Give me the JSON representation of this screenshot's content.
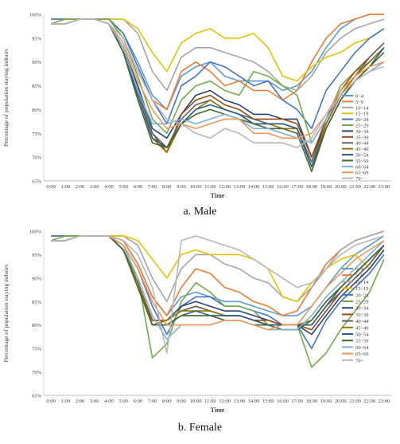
{
  "chart_data": [
    {
      "type": "line",
      "caption": "a. Male",
      "xlabel": "Time",
      "ylabel": "Percentage of population staying indoors",
      "ylim": [
        65,
        100
      ],
      "yticks": [
        "65%",
        "70%",
        "75%",
        "80%",
        "85%",
        "90%",
        "95%",
        "100%"
      ],
      "x": [
        "0:00",
        "1:00",
        "2:00",
        "3:00",
        "4:00",
        "5:00",
        "6:00",
        "7:00",
        "8:00",
        "9:00",
        "10:00",
        "11:00",
        "12:00",
        "13:00",
        "14:00",
        "15:00",
        "16:00",
        "17:00",
        "18:00",
        "19:00",
        "20:00",
        "21:00",
        "22:00",
        "23:00"
      ],
      "legend_position": "right",
      "grid": false,
      "series": [
        {
          "name": "0~4",
          "color": "#5b9bd5",
          "values": [
            99,
            99,
            99,
            99,
            99,
            96,
            90,
            83,
            80,
            87,
            89,
            90,
            87,
            86,
            86,
            86,
            84,
            85,
            88,
            93,
            97,
            99,
            100,
            100
          ]
        },
        {
          "name": "5~9",
          "color": "#ed7d31",
          "values": [
            99,
            99,
            99,
            99,
            99,
            95,
            88,
            82,
            80,
            88,
            90,
            88,
            85,
            86,
            84,
            84,
            82,
            84,
            90,
            95,
            98,
            99,
            100,
            100
          ]
        },
        {
          "name": "10~14",
          "color": "#a5a5a5",
          "values": [
            99,
            99,
            99,
            99,
            99,
            99,
            96,
            88,
            84,
            91,
            93,
            93,
            92,
            91,
            90,
            88,
            85,
            84,
            87,
            92,
            95,
            97,
            98,
            99
          ]
        },
        {
          "name": "15~19",
          "color": "#e6c300",
          "values": [
            99,
            99,
            99,
            99,
            99,
            99,
            97,
            92,
            88,
            94,
            96,
            97,
            95,
            95,
            96,
            93,
            87,
            86,
            89,
            91,
            92,
            94,
            95,
            97
          ]
        },
        {
          "name": "20~24",
          "color": "#4472c4",
          "values": [
            99,
            99,
            99,
            99,
            99,
            96,
            89,
            82,
            77,
            85,
            87,
            90,
            89,
            87,
            85,
            86,
            82,
            80,
            76,
            84,
            88,
            92,
            95,
            97
          ]
        },
        {
          "name": "25~29",
          "color": "#70ad47",
          "values": [
            98,
            99,
            99,
            99,
            99,
            95,
            87,
            78,
            75,
            82,
            85,
            86,
            84,
            83,
            88,
            87,
            85,
            83,
            73,
            78,
            85,
            88,
            90,
            93
          ]
        },
        {
          "name": "30~34",
          "color": "#264478",
          "values": [
            98,
            98,
            99,
            99,
            98,
            93,
            85,
            76,
            74,
            79,
            83,
            84,
            82,
            81,
            79,
            79,
            78,
            78,
            70,
            77,
            83,
            87,
            90,
            93
          ]
        },
        {
          "name": "35~39",
          "color": "#9e480e",
          "values": [
            98,
            98,
            99,
            99,
            98,
            93,
            84,
            75,
            71,
            79,
            82,
            83,
            81,
            80,
            78,
            78,
            78,
            77,
            70,
            78,
            84,
            88,
            91,
            94
          ]
        },
        {
          "name": "40~44",
          "color": "#636363",
          "values": [
            98,
            98,
            99,
            99,
            98,
            93,
            84,
            75,
            72,
            78,
            81,
            82,
            80,
            79,
            78,
            77,
            77,
            76,
            69,
            77,
            83,
            87,
            91,
            94
          ]
        },
        {
          "name": "45~49",
          "color": "#997300",
          "values": [
            98,
            98,
            99,
            99,
            98,
            92,
            83,
            74,
            71,
            77,
            80,
            82,
            80,
            79,
            77,
            77,
            76,
            76,
            68,
            77,
            83,
            87,
            90,
            93
          ]
        },
        {
          "name": "50~54",
          "color": "#255e91",
          "values": [
            98,
            98,
            99,
            99,
            98,
            92,
            83,
            74,
            72,
            77,
            80,
            81,
            80,
            79,
            77,
            77,
            77,
            76,
            68,
            76,
            82,
            86,
            89,
            93
          ]
        },
        {
          "name": "55~59",
          "color": "#43682b",
          "values": [
            98,
            98,
            99,
            99,
            98,
            92,
            82,
            73,
            72,
            77,
            79,
            80,
            79,
            78,
            77,
            76,
            76,
            75,
            67,
            76,
            82,
            86,
            89,
            92
          ]
        },
        {
          "name": "60~64",
          "color": "#7cafdd",
          "values": [
            98,
            98,
            99,
            99,
            98,
            93,
            84,
            77,
            77,
            78,
            77,
            78,
            79,
            78,
            76,
            76,
            75,
            74,
            73,
            78,
            83,
            86,
            88,
            90
          ]
        },
        {
          "name": "65~69",
          "color": "#f1975a",
          "values": [
            98,
            98,
            99,
            99,
            98,
            94,
            86,
            80,
            76,
            77,
            76,
            77,
            78,
            78,
            75,
            75,
            74,
            74,
            75,
            79,
            84,
            87,
            89,
            90
          ]
        },
        {
          "name": "70~",
          "color": "#b7b7b7",
          "values": [
            98,
            98,
            99,
            99,
            98,
            95,
            88,
            82,
            78,
            77,
            75,
            74,
            76,
            75,
            73,
            73,
            73,
            72,
            74,
            79,
            83,
            86,
            88,
            89
          ]
        }
      ]
    },
    {
      "type": "line",
      "caption": "b. Female",
      "xlabel": "Time",
      "ylabel": "Percentage of population staying indoors",
      "ylim": [
        65,
        100
      ],
      "yticks": [
        "65%",
        "70%",
        "75%",
        "80%",
        "85%",
        "90%",
        "95%",
        "100%"
      ],
      "x": [
        "0:00",
        "1:00",
        "2:00",
        "3:00",
        "4:00",
        "5:00",
        "6:00",
        "7:00",
        "8:00",
        "9:00",
        "10:00",
        "11:00",
        "12:00",
        "13:00",
        "14:00",
        "15:00",
        "16:00",
        "17:00",
        "18:00",
        "19:00",
        "20:00",
        "21:00",
        "22:00",
        "23:00"
      ],
      "legend_position": "right",
      "grid": false,
      "series": [
        {
          "name": "0~4",
          "color": "#5b9bd5",
          "values": [
            99,
            99,
            99,
            99,
            99,
            98,
            93,
            86,
            82,
            86,
            87,
            86,
            85,
            85,
            84,
            83,
            82,
            82,
            84,
            88,
            92,
            95,
            97,
            99
          ]
        },
        {
          "name": "5~9",
          "color": "#ed7d31",
          "values": [
            99,
            99,
            99,
            99,
            99,
            98,
            93,
            86,
            82,
            88,
            92,
            91,
            88,
            87,
            85,
            84,
            82,
            83,
            88,
            93,
            96,
            98,
            99,
            100
          ]
        },
        {
          "name": "10~14",
          "color": "#a5a5a5",
          "values": [
            99,
            99,
            99,
            99,
            99,
            99,
            97,
            90,
            85,
            92,
            95,
            95,
            93,
            92,
            90,
            89,
            86,
            85,
            88,
            92,
            96,
            98,
            99,
            100
          ]
        },
        {
          "name": "15~19",
          "color": "#e6c300",
          "values": [
            99,
            99,
            99,
            99,
            99,
            99,
            98,
            94,
            90,
            95,
            96,
            95,
            95,
            95,
            94,
            92,
            86,
            85,
            89,
            92,
            94,
            95,
            92,
            96
          ]
        },
        {
          "name": "20~24",
          "color": "#4472c4",
          "values": [
            99,
            99,
            99,
            99,
            99,
            97,
            92,
            84,
            78,
            84,
            86,
            86,
            84,
            84,
            83,
            82,
            80,
            80,
            75,
            81,
            85,
            88,
            91,
            95
          ]
        },
        {
          "name": "25~29",
          "color": "#70ad47",
          "values": [
            98,
            99,
            99,
            99,
            99,
            96,
            90,
            73,
            76,
            85,
            89,
            87,
            84,
            84,
            83,
            80,
            80,
            80,
            71,
            74,
            79,
            83,
            87,
            94
          ]
        },
        {
          "name": "30~34",
          "color": "#264478",
          "values": [
            98,
            98,
            99,
            99,
            99,
            96,
            89,
            81,
            81,
            84,
            85,
            84,
            83,
            83,
            82,
            81,
            80,
            80,
            78,
            82,
            86,
            89,
            92,
            96
          ]
        },
        {
          "name": "35~39",
          "color": "#9e480e",
          "values": [
            98,
            98,
            99,
            99,
            99,
            96,
            89,
            81,
            81,
            83,
            84,
            83,
            82,
            82,
            81,
            81,
            80,
            80,
            79,
            83,
            87,
            90,
            93,
            97
          ]
        },
        {
          "name": "40~44",
          "color": "#636363",
          "values": [
            98,
            98,
            99,
            99,
            99,
            96,
            89,
            80,
            81,
            83,
            84,
            83,
            82,
            82,
            81,
            80,
            80,
            80,
            80,
            84,
            87,
            90,
            93,
            97
          ]
        },
        {
          "name": "45~49",
          "color": "#997300",
          "values": [
            98,
            98,
            99,
            99,
            99,
            96,
            89,
            80,
            81,
            83,
            83,
            83,
            82,
            82,
            81,
            80,
            80,
            80,
            81,
            85,
            88,
            91,
            94,
            97
          ]
        },
        {
          "name": "50~54",
          "color": "#255e91",
          "values": [
            98,
            98,
            99,
            99,
            99,
            96,
            88,
            80,
            80,
            82,
            83,
            82,
            82,
            82,
            81,
            80,
            80,
            80,
            80,
            84,
            88,
            91,
            94,
            97
          ]
        },
        {
          "name": "55~59",
          "color": "#43682b",
          "values": [
            98,
            98,
            99,
            99,
            99,
            96,
            88,
            80,
            80,
            82,
            82,
            82,
            81,
            81,
            80,
            80,
            79,
            79,
            81,
            85,
            88,
            91,
            94,
            97
          ]
        },
        {
          "name": "60~64",
          "color": "#7cafdd",
          "values": [
            98,
            98,
            99,
            99,
            99,
            97,
            90,
            82,
            77,
            80,
            80,
            80,
            81,
            81,
            80,
            79,
            79,
            79,
            82,
            86,
            89,
            92,
            95,
            98
          ]
        },
        {
          "name": "65~69",
          "color": "#f1975a",
          "values": [
            98,
            98,
            99,
            99,
            99,
            97,
            92,
            85,
            80,
            80,
            80,
            80,
            81,
            81,
            80,
            79,
            80,
            80,
            84,
            88,
            91,
            94,
            96,
            98
          ]
        },
        {
          "name": "70~",
          "color": "#b7b7b7",
          "values": [
            98,
            98,
            99,
            99,
            99,
            98,
            95,
            88,
            74,
            98,
            99,
            98,
            97,
            96,
            94,
            92,
            90,
            88,
            89,
            92,
            95,
            97,
            98,
            99
          ]
        }
      ]
    }
  ]
}
